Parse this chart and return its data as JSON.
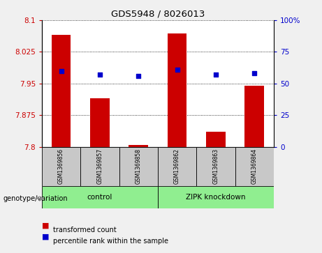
{
  "title": "GDS5948 / 8026013",
  "samples": [
    "GSM1369856",
    "GSM1369857",
    "GSM1369858",
    "GSM1369862",
    "GSM1369863",
    "GSM1369864"
  ],
  "transformed_counts": [
    8.065,
    7.915,
    7.805,
    8.068,
    7.835,
    7.945
  ],
  "percentile_ranks": [
    60,
    57,
    56,
    61,
    57,
    58
  ],
  "ylim_left": [
    7.8,
    8.1
  ],
  "ylim_right": [
    0,
    100
  ],
  "yticks_left": [
    7.8,
    7.875,
    7.95,
    8.025,
    8.1
  ],
  "yticks_right": [
    0,
    25,
    50,
    75,
    100
  ],
  "ytick_labels_left": [
    "7.8",
    "7.875",
    "7.95",
    "8.025",
    "8.1"
  ],
  "ytick_labels_right": [
    "0",
    "25",
    "50",
    "75",
    "100%"
  ],
  "groups": [
    {
      "label": "control",
      "indices": [
        0,
        1,
        2
      ],
      "color": "#90EE90"
    },
    {
      "label": "ZIPK knockdown",
      "indices": [
        3,
        4,
        5
      ],
      "color": "#90EE90"
    }
  ],
  "bar_color": "#CC0000",
  "dot_color": "#0000CC",
  "bar_width": 0.5,
  "grid_color": "black",
  "background_color": "#f0f0f0",
  "plot_bg": "#ffffff",
  "legend_items": [
    {
      "color": "#CC0000",
      "label": "transformed count"
    },
    {
      "color": "#0000CC",
      "label": "percentile rank within the sample"
    }
  ],
  "genotype_label": "genotype/variation",
  "group_box_color": "#c8c8c8"
}
